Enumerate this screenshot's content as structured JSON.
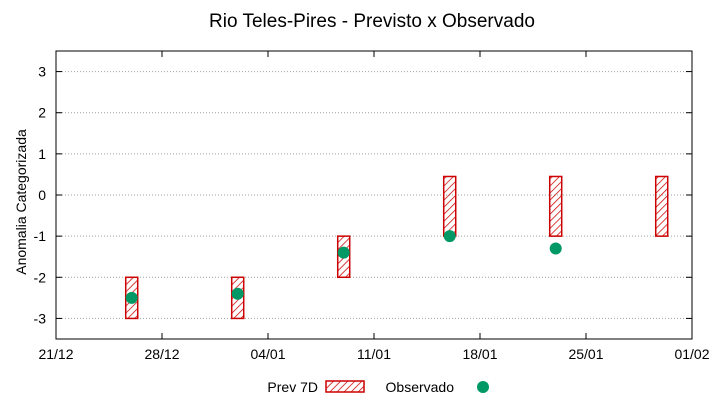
{
  "chart_data": {
    "type": "range-bar-and-scatter",
    "title": "Rio Teles-Pires - Previsto x Observado",
    "xlabel": "",
    "ylabel": "Anomalia Categorizada",
    "ylim": [
      -3.5,
      3.5
    ],
    "yticks": [
      -3,
      -2,
      -1,
      0,
      1,
      2,
      3
    ],
    "ytick_labels": [
      "-3",
      "-2",
      "-1",
      "0",
      "1",
      "2",
      "3"
    ],
    "xlim": [
      0,
      42
    ],
    "xticks": [
      0,
      7,
      14,
      21,
      28,
      35,
      42
    ],
    "xtick_labels": [
      "21/12",
      "28/12",
      "04/01",
      "11/01",
      "18/01",
      "25/01",
      "01/02"
    ],
    "grid": true,
    "legend_position": "bottom-center",
    "series": [
      {
        "name": "Prev 7D",
        "kind": "range-bar",
        "color": "#cc0000",
        "points": [
          {
            "x": 5,
            "low": -3,
            "high": -2
          },
          {
            "x": 12,
            "low": -3,
            "high": -2
          },
          {
            "x": 19,
            "low": -2,
            "high": -1
          },
          {
            "x": 26,
            "low": -1,
            "high": 0.45
          },
          {
            "x": 33,
            "low": -1,
            "high": 0.45
          },
          {
            "x": 40,
            "low": -1,
            "high": 0.45
          }
        ]
      },
      {
        "name": "Observado",
        "kind": "scatter",
        "color": "#009966",
        "points": [
          {
            "x": 5,
            "y": -2.5
          },
          {
            "x": 12,
            "y": -2.4
          },
          {
            "x": 19,
            "y": -1.4
          },
          {
            "x": 26,
            "y": -1.0
          },
          {
            "x": 33,
            "y": -1.3
          }
        ]
      }
    ]
  }
}
